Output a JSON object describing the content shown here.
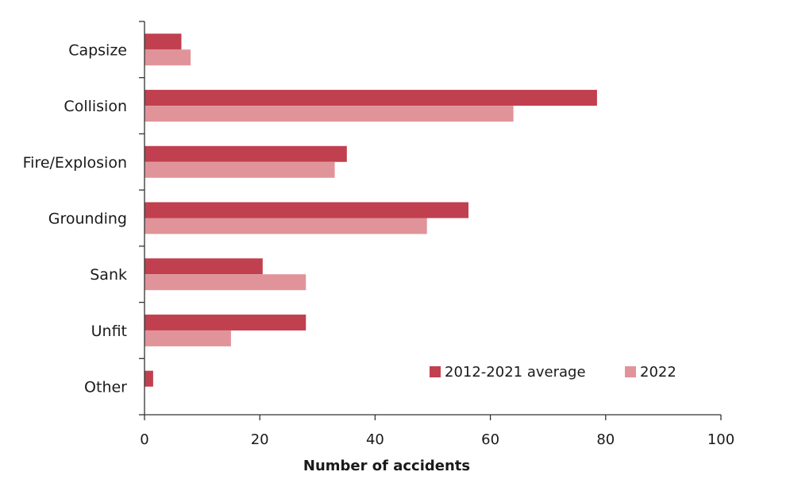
{
  "chart_data": {
    "type": "bar",
    "orientation": "horizontal",
    "title": "",
    "xlabel": "Number of accidents",
    "ylabel": "",
    "xlim": [
      0,
      100
    ],
    "x_ticks": [
      "0",
      "20",
      "40",
      "60",
      "80",
      "100"
    ],
    "x_tick_values": [
      0,
      20,
      40,
      60,
      80,
      100
    ],
    "grid": false,
    "legend_position": "bottom-right",
    "categories": [
      "Capsize",
      "Collision",
      "Fire/Explosion",
      "Grounding",
      "Sank",
      "Unfit",
      "Other"
    ],
    "series": [
      {
        "name": "2012-2021 average",
        "color": "#c0404f",
        "values": [
          6.4,
          78.5,
          35.1,
          56.2,
          20.5,
          28.0,
          1.5
        ]
      },
      {
        "name": "2022",
        "color": "#e09499",
        "values": [
          8,
          64,
          33,
          49,
          28,
          15,
          0
        ]
      }
    ]
  }
}
